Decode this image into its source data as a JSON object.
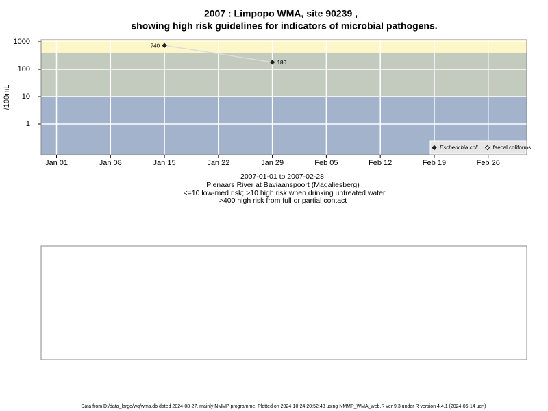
{
  "chart_data": {
    "type": "line",
    "title": "2007 : Limpopo WMA, site 90239 ,",
    "subtitle": "showing high risk guidelines for indicators of microbial pathogens.",
    "ylabel": "/100mL",
    "notes": [
      "2007-01-01 to 2007-02-28",
      "Pienaars River at Baviaanspoort (Magaliesberg)",
      "<=10 low-med risk; >10 high risk when drinking untreated water",
      ">400 high risk from full or partial contact"
    ],
    "footer": "Data from D:/data_large/wq/wms.db dated 2024-08-27, mainly NMMP programme. Plotted on 2024-10-24 20:52:43 using NMMP_WMA_web.R ver 9.3 under R version 4.4.1 (2024-06-14 ucrt)",
    "log_y": true,
    "grid": true,
    "legend": "bottom-right",
    "ylim": [
      0.075,
      1190
    ],
    "yticks": [
      1,
      10,
      100,
      1000
    ],
    "xlim": [
      "2006-12-30",
      "2007-03-03"
    ],
    "xticks": [
      {
        "value": "2007-01-01",
        "label": "Jan 01"
      },
      {
        "value": "2007-01-08",
        "label": "Jan 08"
      },
      {
        "value": "2007-01-15",
        "label": "Jan 15"
      },
      {
        "value": "2007-01-22",
        "label": "Jan 22"
      },
      {
        "value": "2007-01-29",
        "label": "Jan 29"
      },
      {
        "value": "2007-02-05",
        "label": "Feb 05"
      },
      {
        "value": "2007-02-12",
        "label": "Feb 12"
      },
      {
        "value": "2007-02-19",
        "label": "Feb 19"
      },
      {
        "value": "2007-02-26",
        "label": "Feb 26"
      }
    ],
    "bands": [
      {
        "from": 400,
        "color": "#fdf6c9"
      },
      {
        "from": 10,
        "color": "#c3cbbe"
      },
      {
        "from": 0.075,
        "color": "#a2b3cb"
      }
    ],
    "line_color": "#dcdcdc",
    "x": [
      "2007-01-15",
      "2007-01-29"
    ],
    "series": [
      {
        "name": "Escherichia coli",
        "color": "#222222",
        "marker": "filled",
        "values": [
          740,
          180
        ],
        "value_labels": [
          "740",
          "180"
        ]
      },
      {
        "name": "faecal coliforms",
        "color": "#222222",
        "marker": "open",
        "values": [
          null,
          null
        ]
      }
    ]
  }
}
